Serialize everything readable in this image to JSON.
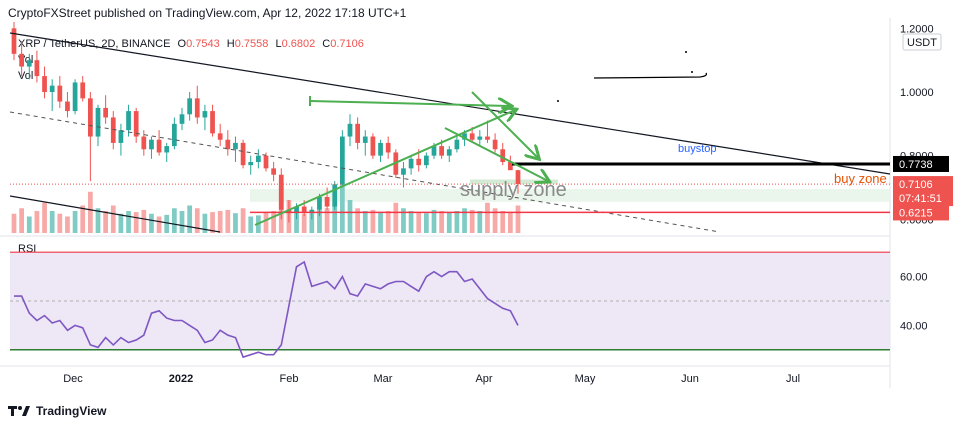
{
  "header": {
    "published": "CryptoFXStreet published on TradingView.com, Apr 12, 2022 17:18 UTC+1"
  },
  "legend": {
    "symbol": "XRP / TetherUS, 2D, BINANCE",
    "open_label": "O",
    "open": "0.7543",
    "high_label": "H",
    "high": "0.7558",
    "low_label": "L",
    "low": "0.6802",
    "close_label": "C",
    "close": "0.7106",
    "vol1": "Vol",
    "vol2": "Vol"
  },
  "rsi_label": "RSI",
  "currency": "USDT",
  "footer": {
    "brand": "TradingView"
  },
  "annotations": {
    "supply_zone": "supply zone",
    "buy_zone": "buy zone",
    "buystop": "buystop"
  },
  "price_tags": {
    "resistance": "0.7738",
    "last": "0.7106",
    "countdown": "07:41:51",
    "support": "0.6215"
  },
  "colors": {
    "up": "#26a69a",
    "down": "#ef5350",
    "trend": "#131722",
    "green_arrow": "#4caf50",
    "rsi_line": "#7e57c2",
    "rsi_band": "#ede7f6",
    "buy_zone_fill": "#e8f5e9",
    "support_line": "#f23645",
    "buystop": "#2962ff"
  },
  "chart_data": [
    {
      "type": "candlestick",
      "title": "XRP / TetherUS, 2D, BINANCE",
      "ylabel": "USDT",
      "y_ticks": [
        "1.2000",
        "1.0000",
        "0.8000",
        "0.6000"
      ],
      "x_ticks": [
        "Dec",
        "2022",
        "Feb",
        "Mar",
        "Apr",
        "May",
        "Jun",
        "Jul"
      ],
      "ylim": [
        0.56,
        1.22
      ],
      "period": "2 days per candle, Nov 2021 to Apr 12 2022",
      "candles": [
        [
          1.2,
          1.22,
          1.1,
          1.12
        ],
        [
          1.12,
          1.16,
          1.05,
          1.08
        ],
        [
          1.08,
          1.12,
          1.04,
          1.1
        ],
        [
          1.1,
          1.13,
          1.03,
          1.05
        ],
        [
          1.05,
          1.08,
          0.98,
          1.0
        ],
        [
          1.0,
          1.04,
          0.94,
          1.02
        ],
        [
          1.02,
          1.05,
          0.95,
          0.97
        ],
        [
          0.97,
          1.0,
          0.92,
          0.94
        ],
        [
          0.94,
          1.04,
          0.93,
          1.03
        ],
        [
          1.03,
          1.05,
          0.97,
          0.98
        ],
        [
          0.98,
          1.0,
          0.72,
          0.86
        ],
        [
          0.86,
          0.96,
          0.83,
          0.95
        ],
        [
          0.95,
          0.99,
          0.9,
          0.92
        ],
        [
          0.92,
          0.94,
          0.82,
          0.84
        ],
        [
          0.84,
          0.9,
          0.8,
          0.88
        ],
        [
          0.88,
          0.96,
          0.86,
          0.94
        ],
        [
          0.94,
          0.95,
          0.84,
          0.86
        ],
        [
          0.86,
          0.88,
          0.8,
          0.82
        ],
        [
          0.82,
          0.86,
          0.79,
          0.85
        ],
        [
          0.85,
          0.88,
          0.8,
          0.81
        ],
        [
          0.81,
          0.84,
          0.78,
          0.83
        ],
        [
          0.83,
          0.92,
          0.82,
          0.9
        ],
        [
          0.9,
          0.95,
          0.88,
          0.93
        ],
        [
          0.93,
          1.0,
          0.91,
          0.98
        ],
        [
          0.98,
          1.02,
          0.9,
          0.92
        ],
        [
          0.92,
          0.96,
          0.88,
          0.94
        ],
        [
          0.94,
          0.96,
          0.86,
          0.87
        ],
        [
          0.87,
          0.9,
          0.83,
          0.85
        ],
        [
          0.85,
          0.88,
          0.8,
          0.82
        ],
        [
          0.82,
          0.86,
          0.78,
          0.84
        ],
        [
          0.84,
          0.85,
          0.76,
          0.77
        ],
        [
          0.77,
          0.8,
          0.74,
          0.78
        ],
        [
          0.78,
          0.82,
          0.76,
          0.8
        ],
        [
          0.8,
          0.81,
          0.75,
          0.76
        ],
        [
          0.76,
          0.78,
          0.72,
          0.74
        ],
        [
          0.74,
          0.76,
          0.6,
          0.63
        ],
        [
          0.63,
          0.66,
          0.59,
          0.62
        ],
        [
          0.62,
          0.65,
          0.6,
          0.64
        ],
        [
          0.64,
          0.66,
          0.61,
          0.62
        ],
        [
          0.62,
          0.64,
          0.6,
          0.63
        ],
        [
          0.63,
          0.68,
          0.61,
          0.67
        ],
        [
          0.67,
          0.7,
          0.63,
          0.64
        ],
        [
          0.64,
          0.72,
          0.63,
          0.71
        ],
        [
          0.71,
          0.88,
          0.7,
          0.86
        ],
        [
          0.86,
          0.93,
          0.83,
          0.9
        ],
        [
          0.9,
          0.92,
          0.82,
          0.84
        ],
        [
          0.84,
          0.88,
          0.8,
          0.86
        ],
        [
          0.86,
          0.87,
          0.79,
          0.8
        ],
        [
          0.8,
          0.85,
          0.78,
          0.84
        ],
        [
          0.84,
          0.86,
          0.79,
          0.81
        ],
        [
          0.81,
          0.82,
          0.73,
          0.74
        ],
        [
          0.74,
          0.78,
          0.7,
          0.76
        ],
        [
          0.76,
          0.8,
          0.74,
          0.79
        ],
        [
          0.79,
          0.82,
          0.75,
          0.77
        ],
        [
          0.77,
          0.81,
          0.76,
          0.8
        ],
        [
          0.8,
          0.84,
          0.79,
          0.83
        ],
        [
          0.83,
          0.85,
          0.79,
          0.8
        ],
        [
          0.8,
          0.83,
          0.78,
          0.82
        ],
        [
          0.82,
          0.86,
          0.81,
          0.85
        ],
        [
          0.85,
          0.88,
          0.83,
          0.87
        ],
        [
          0.87,
          0.89,
          0.84,
          0.85
        ],
        [
          0.85,
          0.88,
          0.83,
          0.86
        ],
        [
          0.86,
          0.91,
          0.84,
          0.85
        ],
        [
          0.85,
          0.87,
          0.81,
          0.82
        ],
        [
          0.82,
          0.84,
          0.77,
          0.78
        ],
        [
          0.78,
          0.8,
          0.76,
          0.7543
        ],
        [
          0.7543,
          0.7558,
          0.6802,
          0.7106
        ]
      ],
      "volume_relative": [
        0.35,
        0.45,
        0.3,
        0.4,
        0.55,
        0.4,
        0.35,
        0.3,
        0.4,
        0.5,
        0.75,
        0.45,
        0.4,
        0.5,
        0.35,
        0.4,
        0.38,
        0.42,
        0.35,
        0.3,
        0.33,
        0.45,
        0.4,
        0.5,
        0.45,
        0.35,
        0.38,
        0.4,
        0.42,
        0.36,
        0.45,
        0.3,
        0.32,
        0.38,
        0.4,
        0.85,
        0.6,
        0.4,
        0.35,
        0.38,
        0.42,
        0.45,
        0.55,
        0.9,
        0.6,
        0.45,
        0.4,
        0.42,
        0.38,
        0.4,
        0.55,
        0.45,
        0.4,
        0.38,
        0.36,
        0.42,
        0.4,
        0.38,
        0.4,
        0.45,
        0.42,
        0.4,
        0.55,
        0.45,
        0.4,
        0.38,
        0.5
      ]
    },
    {
      "type": "line",
      "title": "RSI",
      "y_ticks": [
        "60.00",
        "40.00"
      ],
      "levels": [
        70,
        50,
        30
      ],
      "ylim": [
        25,
        75
      ],
      "values": [
        52,
        52,
        45,
        42,
        44,
        41,
        42,
        38,
        40,
        39,
        32,
        31,
        35,
        32,
        35,
        33,
        34,
        36,
        45,
        46,
        43,
        42,
        42,
        40,
        38,
        33,
        34,
        38,
        36,
        35,
        27,
        28,
        29,
        28,
        28,
        32,
        48,
        64,
        66,
        56,
        57,
        58,
        55,
        60,
        53,
        52,
        57,
        56,
        55,
        57,
        58,
        58,
        56,
        54,
        60,
        62,
        60,
        62,
        62,
        58,
        59,
        55,
        51,
        49,
        47,
        46,
        40
      ]
    }
  ]
}
